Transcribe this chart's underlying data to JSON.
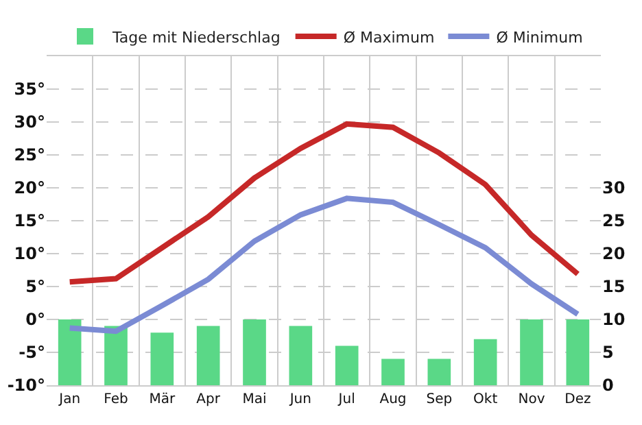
{
  "chart_data": {
    "type": "line",
    "categories": [
      "Jan",
      "Feb",
      "Mär",
      "Apr",
      "Mai",
      "Jun",
      "Jul",
      "Aug",
      "Sep",
      "Okt",
      "Nov",
      "Dez"
    ],
    "series": [
      {
        "name": "Ø Maximum",
        "color": "#c62828",
        "values": [
          5.7,
          6.2,
          10.9,
          15.6,
          21.5,
          26.0,
          29.7,
          29.2,
          25.3,
          20.5,
          12.8,
          6.9
        ]
      },
      {
        "name": "Ø Minimum",
        "color": "#7b8bd4",
        "values": [
          -1.3,
          -1.8,
          2.1,
          6.1,
          11.9,
          15.9,
          18.4,
          17.8,
          14.4,
          10.9,
          5.4,
          0.8
        ]
      },
      {
        "name": "Tage mit Niederschlag",
        "type": "bar",
        "axis": "y2",
        "color": "#5ad887",
        "values": [
          10,
          9,
          8,
          9,
          10,
          9,
          6,
          4,
          4,
          7,
          10,
          10
        ]
      }
    ],
    "ylim": [
      -10,
      40
    ],
    "yticks": [
      {
        "value": -10,
        "label": "-10°"
      },
      {
        "value": -5,
        "label": "-5°"
      },
      {
        "value": 0,
        "label": "0°"
      },
      {
        "value": 5,
        "label": "5°"
      },
      {
        "value": 10,
        "label": "10°"
      },
      {
        "value": 15,
        "label": "15°"
      },
      {
        "value": 20,
        "label": "20°"
      },
      {
        "value": 25,
        "label": "25°"
      },
      {
        "value": 30,
        "label": "30°"
      },
      {
        "value": 35,
        "label": "35°"
      }
    ],
    "y2lim": [
      0,
      50
    ],
    "y2ticks": [
      0,
      5,
      10,
      15,
      20,
      25,
      30
    ],
    "grid": true,
    "legend": "top",
    "marker": "none",
    "line_style": "solid"
  }
}
